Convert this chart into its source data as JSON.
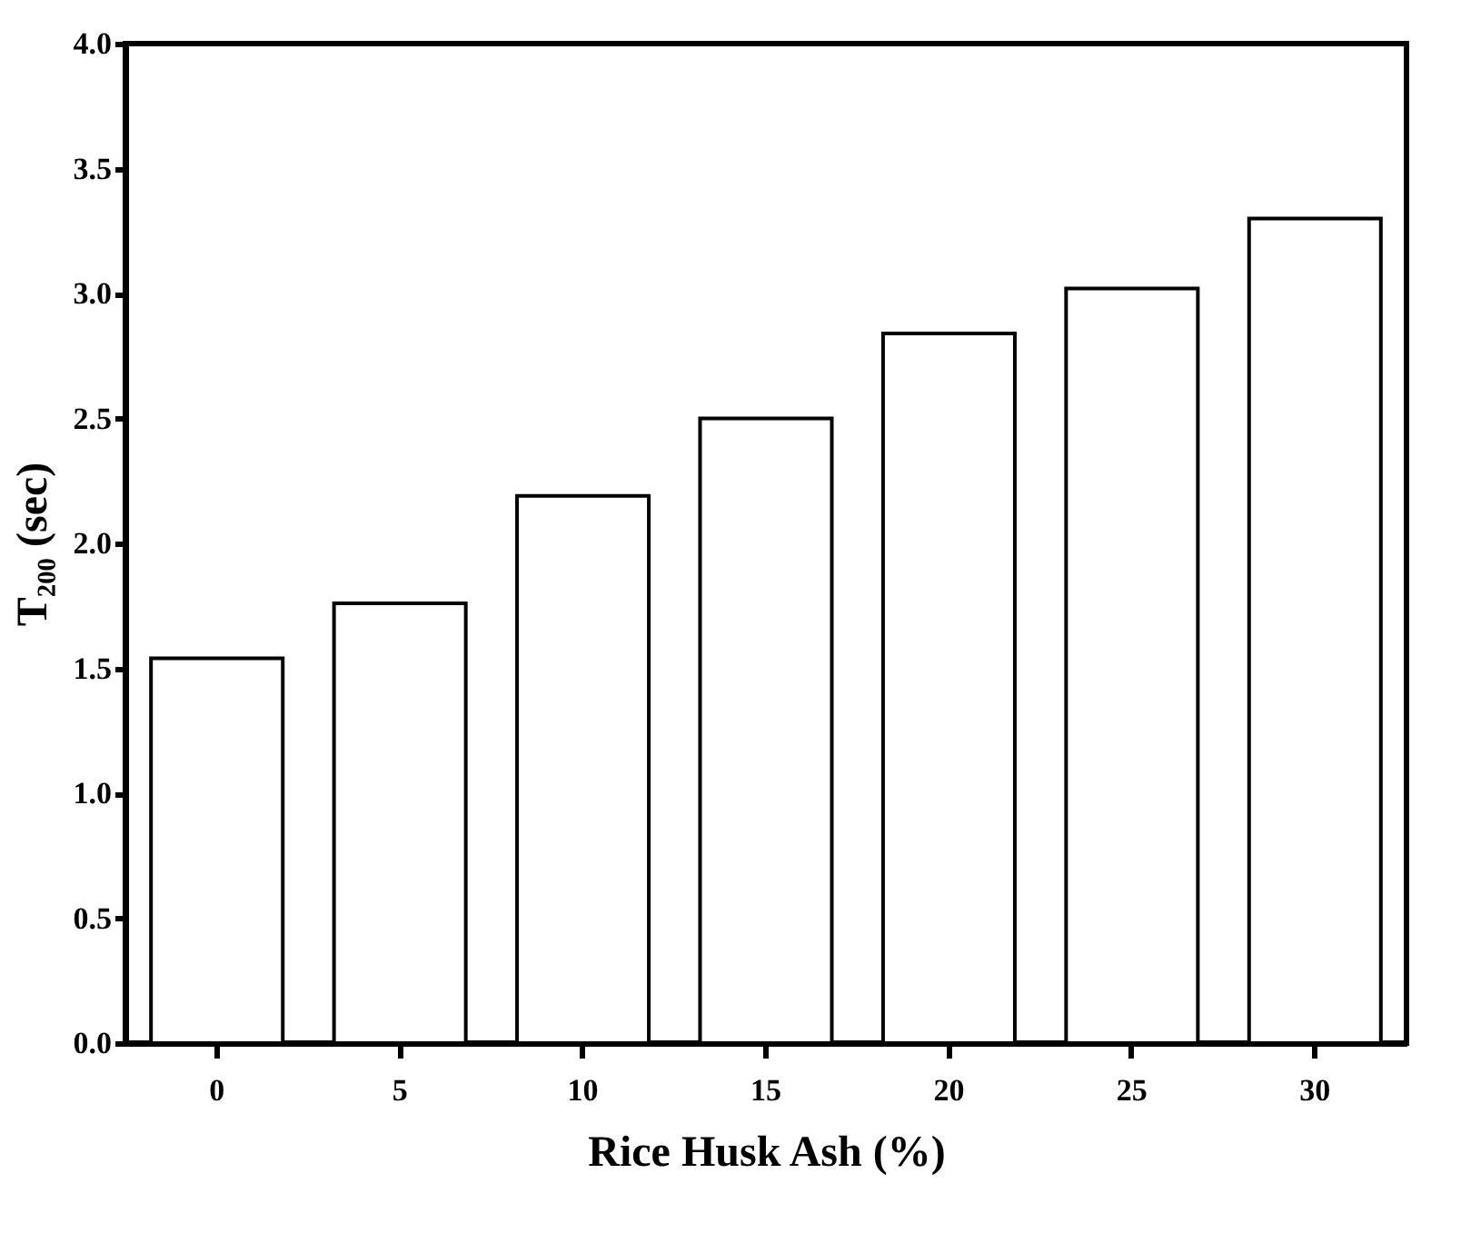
{
  "chart_data": {
    "type": "bar",
    "xlabel": "Rice Husk Ash (%)",
    "ylabel": "T₂₀₀ (sec)",
    "categories": [
      "0",
      "5",
      "10",
      "15",
      "20",
      "25",
      "30"
    ],
    "values": [
      1.54,
      1.76,
      2.19,
      2.5,
      2.84,
      3.02,
      3.3
    ],
    "color": "#ffffff",
    "ylim": [
      0,
      4
    ],
    "yticks": [
      {
        "value": 0,
        "label": "0.0"
      },
      0.5,
      {
        "value": 1,
        "label": "1.0"
      },
      1.5,
      {
        "value": 2,
        "label": "2.0"
      },
      2.5,
      {
        "value": 3,
        "label": "3.0"
      },
      3.5,
      {
        "value": 4,
        "label": "4.0"
      }
    ],
    "grid": false
  }
}
